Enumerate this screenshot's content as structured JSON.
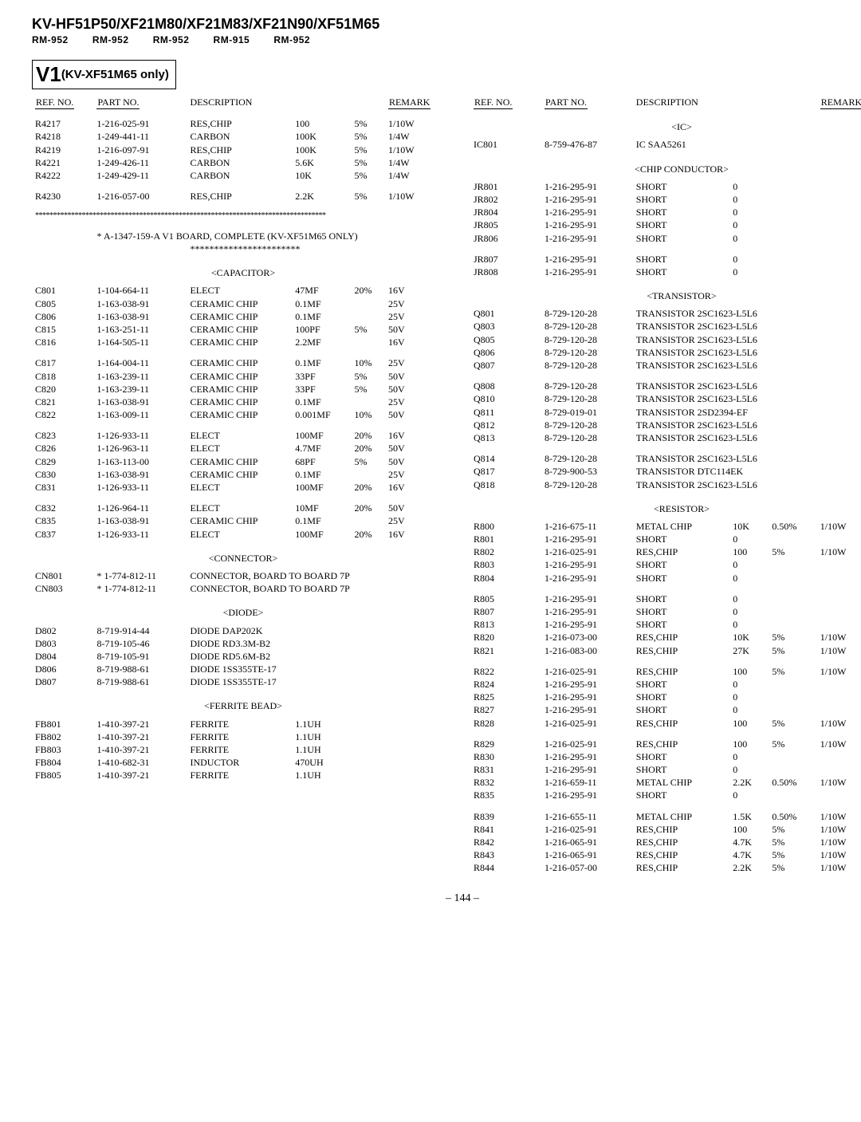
{
  "header": {
    "title": "KV-HF51P50/XF21M80/XF21M83/XF21N90/XF51M65",
    "remotes": [
      "RM-952",
      "RM-952",
      "RM-952",
      "RM-915",
      "RM-952"
    ]
  },
  "section": {
    "code": "V1",
    "note": "(KV-XF51M65 only)"
  },
  "col_header": {
    "c1": "REF. NO.",
    "c2": "PART NO.",
    "c3": "DESCRIPTION",
    "c6": "REMARK"
  },
  "left": {
    "block1": [
      [
        "R4217",
        "1-216-025-91",
        "RES,CHIP",
        "100",
        "5%",
        "1/10W"
      ],
      [
        "R4218",
        "1-249-441-11",
        "CARBON",
        "100K",
        "5%",
        "1/4W"
      ],
      [
        "R4219",
        "1-216-097-91",
        "RES,CHIP",
        "100K",
        "5%",
        "1/10W"
      ],
      [
        "R4221",
        "1-249-426-11",
        "CARBON",
        "5.6K",
        "5%",
        "1/4W"
      ],
      [
        "R4222",
        "1-249-429-11",
        "CARBON",
        "10K",
        "5%",
        "1/4W"
      ]
    ],
    "block1b": [
      [
        "R4230",
        "1-216-057-00",
        "RES,CHIP",
        "2.2K",
        "5%",
        "1/10W"
      ]
    ],
    "board_line1": "* A-1347-159-A  V1 BOARD, COMPLETE (KV-XF51M65 ONLY)",
    "board_line2": "***********************",
    "cat_cap": "<CAPACITOR>",
    "caps1": [
      [
        "C801",
        "1-104-664-11",
        "ELECT",
        "47MF",
        "20%",
        "16V"
      ],
      [
        "C805",
        "1-163-038-91",
        "CERAMIC CHIP",
        "0.1MF",
        "",
        "25V"
      ],
      [
        "C806",
        "1-163-038-91",
        "CERAMIC CHIP",
        "0.1MF",
        "",
        "25V"
      ],
      [
        "C815",
        "1-163-251-11",
        "CERAMIC CHIP",
        "100PF",
        "5%",
        "50V"
      ],
      [
        "C816",
        "1-164-505-11",
        "CERAMIC CHIP",
        "2.2MF",
        "",
        "16V"
      ]
    ],
    "caps2": [
      [
        "C817",
        "1-164-004-11",
        "CERAMIC CHIP",
        "0.1MF",
        "10%",
        "25V"
      ],
      [
        "C818",
        "1-163-239-11",
        "CERAMIC CHIP",
        "33PF",
        "5%",
        "50V"
      ],
      [
        "C820",
        "1-163-239-11",
        "CERAMIC CHIP",
        "33PF",
        "5%",
        "50V"
      ],
      [
        "C821",
        "1-163-038-91",
        "CERAMIC CHIP",
        "0.1MF",
        "",
        "25V"
      ],
      [
        "C822",
        "1-163-009-11",
        "CERAMIC CHIP",
        "0.001MF",
        "10%",
        "50V"
      ]
    ],
    "caps3": [
      [
        "C823",
        "1-126-933-11",
        "ELECT",
        "100MF",
        "20%",
        "16V"
      ],
      [
        "C826",
        "1-126-963-11",
        "ELECT",
        "4.7MF",
        "20%",
        "50V"
      ],
      [
        "C829",
        "1-163-113-00",
        "CERAMIC CHIP",
        "68PF",
        "5%",
        "50V"
      ],
      [
        "C830",
        "1-163-038-91",
        "CERAMIC CHIP",
        "0.1MF",
        "",
        "25V"
      ],
      [
        "C831",
        "1-126-933-11",
        "ELECT",
        "100MF",
        "20%",
        "16V"
      ]
    ],
    "caps4": [
      [
        "C832",
        "1-126-964-11",
        "ELECT",
        "10MF",
        "20%",
        "50V"
      ],
      [
        "C835",
        "1-163-038-91",
        "CERAMIC CHIP",
        "0.1MF",
        "",
        "25V"
      ],
      [
        "C837",
        "1-126-933-11",
        "ELECT",
        "100MF",
        "20%",
        "16V"
      ]
    ],
    "cat_conn": "<CONNECTOR>",
    "conns": [
      [
        "CN801",
        "* 1-774-812-11",
        "CONNECTOR, BOARD TO BOARD 7P"
      ],
      [
        "CN803",
        "* 1-774-812-11",
        "CONNECTOR, BOARD TO BOARD 7P"
      ]
    ],
    "cat_diode": "<DIODE>",
    "diodes": [
      [
        "D802",
        "8-719-914-44",
        "DIODE DAP202K"
      ],
      [
        "D803",
        "8-719-105-46",
        "DIODE RD3.3M-B2"
      ],
      [
        "D804",
        "8-719-105-91",
        "DIODE RD5.6M-B2"
      ],
      [
        "D806",
        "8-719-988-61",
        "DIODE 1SS355TE-17"
      ],
      [
        "D807",
        "8-719-988-61",
        "DIODE 1SS355TE-17"
      ]
    ],
    "cat_fb": "<FERRITE BEAD>",
    "fbs": [
      [
        "FB801",
        "1-410-397-21",
        "FERRITE",
        "1.1UH"
      ],
      [
        "FB802",
        "1-410-397-21",
        "FERRITE",
        "1.1UH"
      ],
      [
        "FB803",
        "1-410-397-21",
        "FERRITE",
        "1.1UH"
      ],
      [
        "FB804",
        "1-410-682-31",
        "INDUCTOR",
        "470UH"
      ],
      [
        "FB805",
        "1-410-397-21",
        "FERRITE",
        "1.1UH"
      ]
    ]
  },
  "right": {
    "cat_ic": "<IC>",
    "ic": [
      [
        "IC801",
        "8-759-476-87",
        "IC SAA5261"
      ]
    ],
    "cat_cc": "<CHIP CONDUCTOR>",
    "cc1": [
      [
        "JR801",
        "1-216-295-91",
        "SHORT",
        "0"
      ],
      [
        "JR802",
        "1-216-295-91",
        "SHORT",
        "0"
      ],
      [
        "JR804",
        "1-216-295-91",
        "SHORT",
        "0"
      ],
      [
        "JR805",
        "1-216-295-91",
        "SHORT",
        "0"
      ],
      [
        "JR806",
        "1-216-295-91",
        "SHORT",
        "0"
      ]
    ],
    "cc2": [
      [
        "JR807",
        "1-216-295-91",
        "SHORT",
        "0"
      ],
      [
        "JR808",
        "1-216-295-91",
        "SHORT",
        "0"
      ]
    ],
    "cat_tr": "<TRANSISTOR>",
    "tr1": [
      [
        "Q801",
        "8-729-120-28",
        "TRANSISTOR 2SC1623-L5L6"
      ],
      [
        "Q803",
        "8-729-120-28",
        "TRANSISTOR 2SC1623-L5L6"
      ],
      [
        "Q805",
        "8-729-120-28",
        "TRANSISTOR 2SC1623-L5L6"
      ],
      [
        "Q806",
        "8-729-120-28",
        "TRANSISTOR 2SC1623-L5L6"
      ],
      [
        "Q807",
        "8-729-120-28",
        "TRANSISTOR 2SC1623-L5L6"
      ]
    ],
    "tr2": [
      [
        "Q808",
        "8-729-120-28",
        "TRANSISTOR 2SC1623-L5L6"
      ],
      [
        "Q810",
        "8-729-120-28",
        "TRANSISTOR 2SC1623-L5L6"
      ],
      [
        "Q811",
        "8-729-019-01",
        "TRANSISTOR 2SD2394-EF"
      ],
      [
        "Q812",
        "8-729-120-28",
        "TRANSISTOR 2SC1623-L5L6"
      ],
      [
        "Q813",
        "8-729-120-28",
        "TRANSISTOR 2SC1623-L5L6"
      ]
    ],
    "tr3": [
      [
        "Q814",
        "8-729-120-28",
        "TRANSISTOR 2SC1623-L5L6"
      ],
      [
        "Q817",
        "8-729-900-53",
        "TRANSISTOR DTC114EK"
      ],
      [
        "Q818",
        "8-729-120-28",
        "TRANSISTOR 2SC1623-L5L6"
      ]
    ],
    "cat_res": "<RESISTOR>",
    "res1": [
      [
        "R800",
        "1-216-675-11",
        "METAL CHIP",
        "10K",
        "0.50%",
        "1/10W"
      ],
      [
        "R801",
        "1-216-295-91",
        "SHORT",
        "0",
        "",
        ""
      ],
      [
        "R802",
        "1-216-025-91",
        "RES,CHIP",
        "100",
        "5%",
        "1/10W"
      ],
      [
        "R803",
        "1-216-295-91",
        "SHORT",
        "0",
        "",
        ""
      ],
      [
        "R804",
        "1-216-295-91",
        "SHORT",
        "0",
        "",
        ""
      ]
    ],
    "res2": [
      [
        "R805",
        "1-216-295-91",
        "SHORT",
        "0",
        "",
        ""
      ],
      [
        "R807",
        "1-216-295-91",
        "SHORT",
        "0",
        "",
        ""
      ],
      [
        "R813",
        "1-216-295-91",
        "SHORT",
        "0",
        "",
        ""
      ],
      [
        "R820",
        "1-216-073-00",
        "RES,CHIP",
        "10K",
        "5%",
        "1/10W"
      ],
      [
        "R821",
        "1-216-083-00",
        "RES,CHIP",
        "27K",
        "5%",
        "1/10W"
      ]
    ],
    "res3": [
      [
        "R822",
        "1-216-025-91",
        "RES,CHIP",
        "100",
        "5%",
        "1/10W"
      ],
      [
        "R824",
        "1-216-295-91",
        "SHORT",
        "0",
        "",
        ""
      ],
      [
        "R825",
        "1-216-295-91",
        "SHORT",
        "0",
        "",
        ""
      ],
      [
        "R827",
        "1-216-295-91",
        "SHORT",
        "0",
        "",
        ""
      ],
      [
        "R828",
        "1-216-025-91",
        "RES,CHIP",
        "100",
        "5%",
        "1/10W"
      ]
    ],
    "res4": [
      [
        "R829",
        "1-216-025-91",
        "RES,CHIP",
        "100",
        "5%",
        "1/10W"
      ],
      [
        "R830",
        "1-216-295-91",
        "SHORT",
        "0",
        "",
        ""
      ],
      [
        "R831",
        "1-216-295-91",
        "SHORT",
        "0",
        "",
        ""
      ],
      [
        "R832",
        "1-216-659-11",
        "METAL CHIP",
        "2.2K",
        "0.50%",
        "1/10W"
      ],
      [
        "R835",
        "1-216-295-91",
        "SHORT",
        "0",
        "",
        ""
      ]
    ],
    "res5": [
      [
        "R839",
        "1-216-655-11",
        "METAL CHIP",
        "1.5K",
        "0.50%",
        "1/10W"
      ],
      [
        "R841",
        "1-216-025-91",
        "RES,CHIP",
        "100",
        "5%",
        "1/10W"
      ],
      [
        "R842",
        "1-216-065-91",
        "RES,CHIP",
        "4.7K",
        "5%",
        "1/10W"
      ],
      [
        "R843",
        "1-216-065-91",
        "RES,CHIP",
        "4.7K",
        "5%",
        "1/10W"
      ],
      [
        "R844",
        "1-216-057-00",
        "RES,CHIP",
        "2.2K",
        "5%",
        "1/10W"
      ]
    ]
  },
  "page": "– 144 –"
}
